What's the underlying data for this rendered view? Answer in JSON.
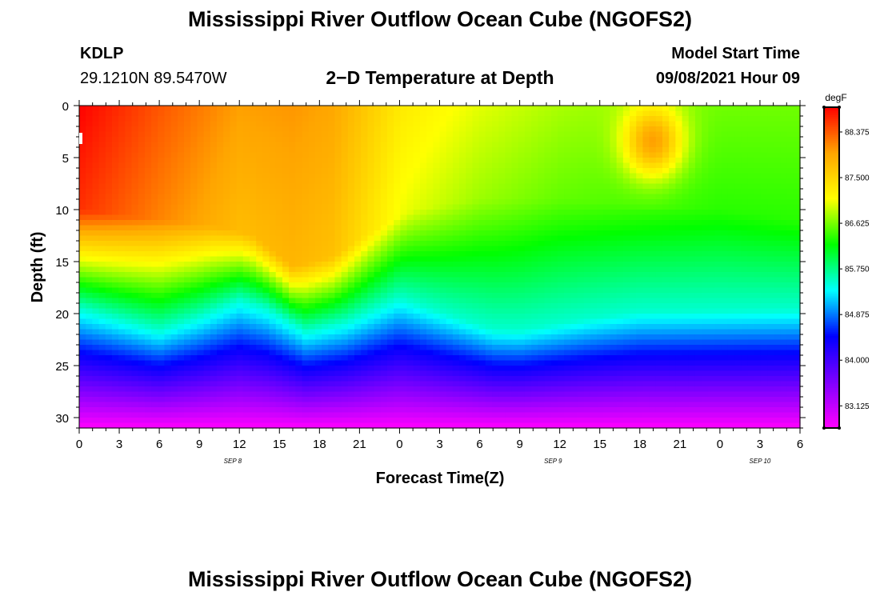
{
  "page": {
    "title_top": "Mississippi River Outflow Ocean Cube (NGOFS2)",
    "title_bottom": "Mississippi River Outflow Ocean Cube (NGOFS2)",
    "station_id": "KDLP",
    "station_location": "29.1210N  89.5470W",
    "plot_subtitle": "2−D Temperature at Depth",
    "model_label": "Model Start Time",
    "model_time": "09/08/2021 Hour 09"
  },
  "chart_data": {
    "type": "heatmap",
    "title": "2−D Temperature at Depth",
    "xlabel": "Forecast Time(Z)",
    "ylabel": "Depth (ft)",
    "x_hours_range": [
      0,
      54
    ],
    "x_tick_labels": [
      "0",
      "3",
      "6",
      "9",
      "12",
      "15",
      "18",
      "21",
      "0",
      "3",
      "6",
      "9",
      "12",
      "15",
      "18",
      "21",
      "0",
      "3",
      "6"
    ],
    "y_range": [
      0,
      31
    ],
    "y_ticks": [
      0,
      5,
      10,
      15,
      20,
      25,
      30
    ],
    "y_inverted": true,
    "date_labels": [
      {
        "text": "SEP 8",
        "hour": 11.5
      },
      {
        "text": "SEP 9",
        "hour": 35.5
      },
      {
        "text": "SEP 10",
        "hour": 51
      }
    ],
    "colorbar": {
      "unit": "degF",
      "range": [
        82.7,
        88.85
      ],
      "tick_labels": [
        "88.375",
        "87.500",
        "86.625",
        "85.750",
        "84.875",
        "84.000",
        "83.125"
      ],
      "colors": [
        "#ff00ff",
        "#7f00ff",
        "#0000ff",
        "#00ffff",
        "#00ff00",
        "#ffff00",
        "#ffa500",
        "#ff0000"
      ]
    },
    "temperature_model": {
      "surface_temp_by_hour": [
        [
          0,
          88.85
        ],
        [
          6,
          88.4
        ],
        [
          12,
          88.0
        ],
        [
          16,
          88.05
        ],
        [
          19,
          87.95
        ],
        [
          24,
          87.3
        ],
        [
          30,
          87.0
        ],
        [
          36,
          86.8
        ],
        [
          42,
          86.7
        ],
        [
          45,
          86.65
        ],
        [
          48,
          86.6
        ],
        [
          54,
          86.6
        ]
      ],
      "warm_patch": {
        "hour": 43,
        "depth_ft": 3.5,
        "amplitude": 1.4
      },
      "thermocline_depth_by_hour": [
        [
          0,
          19.5
        ],
        [
          6,
          21.6
        ],
        [
          9,
          20.3
        ],
        [
          12,
          18.7
        ],
        [
          14,
          19.5
        ],
        [
          17,
          21.7
        ],
        [
          20,
          20.8
        ],
        [
          24,
          18.5
        ],
        [
          27,
          19.8
        ],
        [
          31,
          21.5
        ],
        [
          33,
          21.6
        ],
        [
          38,
          20.5
        ],
        [
          42,
          19.8
        ],
        [
          54,
          19.6
        ]
      ],
      "mixed_layer_depth_by_hour": [
        [
          0,
          10
        ],
        [
          6,
          11
        ],
        [
          10,
          11.5
        ],
        [
          13,
          12.5
        ],
        [
          16,
          15.5
        ],
        [
          19,
          14.5
        ],
        [
          22,
          12
        ],
        [
          25,
          10
        ],
        [
          30,
          9
        ],
        [
          36,
          9
        ],
        [
          42,
          9.5
        ],
        [
          48,
          10
        ],
        [
          54,
          11
        ]
      ],
      "thermocline_temp": 85.5,
      "bottom_temp": 82.7
    }
  }
}
